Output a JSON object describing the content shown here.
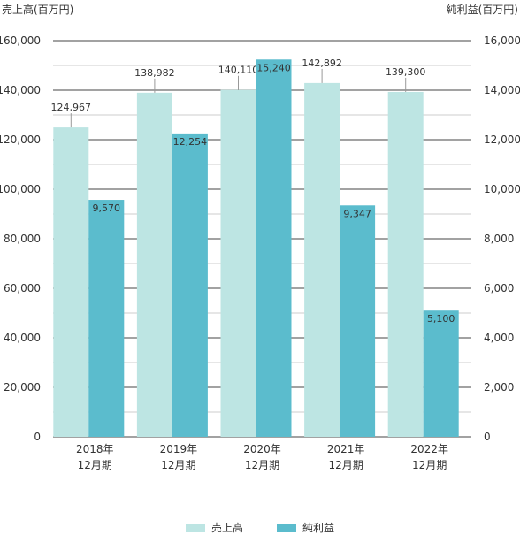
{
  "chart_data": {
    "type": "bar",
    "ylabel_left": "売上高(百万円)",
    "ylabel_right": "純利益(百万円)",
    "categories": [
      [
        "2018年",
        "12月期"
      ],
      [
        "2019年",
        "12月期"
      ],
      [
        "2020年",
        "12月期"
      ],
      [
        "2021年",
        "12月期"
      ],
      [
        "2022年",
        "12月期"
      ]
    ],
    "ylim_left": [
      0,
      160000
    ],
    "ylim_right": [
      0,
      16000
    ],
    "yticks_left": [
      "0",
      "20,000",
      "40,000",
      "60,000",
      "80,000",
      "100,000",
      "120,000",
      "140,000",
      "160,000"
    ],
    "yticks_right": [
      "0",
      "2,000",
      "4,000",
      "6,000",
      "8,000",
      "10,000",
      "12,000",
      "14,000",
      "16,000"
    ],
    "series": [
      {
        "name": "売上高",
        "axis": "left",
        "color": "#bde5e3",
        "values": [
          124967,
          138982,
          140110,
          142892,
          139300
        ],
        "labels": [
          "124,967",
          "138,982",
          "140,110",
          "142,892",
          "139,300"
        ]
      },
      {
        "name": "純利益",
        "axis": "right",
        "color": "#5bbccd",
        "values": [
          9570,
          12254,
          15240,
          9347,
          5100
        ],
        "labels": [
          "9,570",
          "12,254",
          "15,240",
          "9,347",
          "5,100"
        ]
      }
    ],
    "grid": true,
    "legend_position": "bottom-center"
  }
}
